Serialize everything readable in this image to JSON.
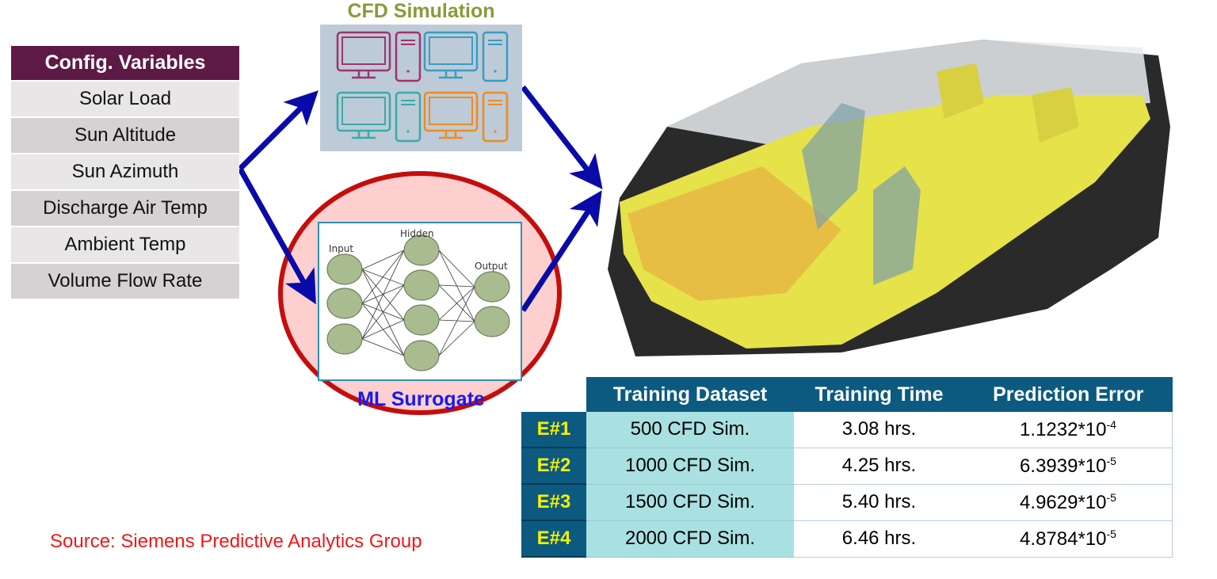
{
  "config": {
    "header": "Config. Variables",
    "variables": [
      "Solar Load",
      "Sun Altitude",
      "Sun Azimuth",
      "Discharge Air Temp",
      "Ambient Temp",
      "Volume Flow Rate"
    ],
    "header_color": "#5e1a47"
  },
  "cfd": {
    "title": "CFD Simulation",
    "title_color": "#8a9a3a",
    "icons": [
      "monitor-icon",
      "tower-pc-icon",
      "monitor-icon",
      "tower-pc-icon",
      "monitor-icon",
      "tower-pc-icon",
      "monitor-icon",
      "tower-pc-icon"
    ]
  },
  "ml": {
    "title": "ML Surrogate",
    "title_color": "#1a1aee",
    "nn_labels": {
      "input": "Input",
      "hidden": "Hidden",
      "output": "Output"
    }
  },
  "results": {
    "headers": [
      "Training Dataset",
      "Training Time",
      "Prediction Error"
    ],
    "rows": [
      {
        "id": "E#1",
        "dataset": "500 CFD Sim.",
        "time": "3.08 hrs.",
        "error_base": "1.1232*10",
        "error_exp": "-4"
      },
      {
        "id": "E#2",
        "dataset": "1000 CFD Sim.",
        "time": "4.25 hrs.",
        "error_base": "6.3939*10",
        "error_exp": "-5"
      },
      {
        "id": "E#3",
        "dataset": "1500 CFD Sim.",
        "time": "5.40 hrs.",
        "error_base": "4.9629*10",
        "error_exp": "-5"
      },
      {
        "id": "E#4",
        "dataset": "2000 CFD Sim.",
        "time": "6.46 hrs.",
        "error_base": "4.8784*10",
        "error_exp": "-5"
      }
    ]
  },
  "source": "Source: Siemens Predictive Analytics Group"
}
